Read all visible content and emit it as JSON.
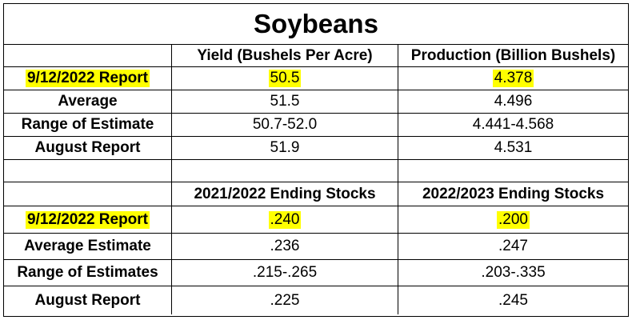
{
  "title": "Soybeans",
  "colors": {
    "highlight": "#ffff00",
    "border": "#000000"
  },
  "section1": {
    "headers": [
      "",
      "Yield (Bushels Per Acre)",
      "Production (Billion Bushels)"
    ],
    "rows": [
      {
        "label": "9/12/2022 Report",
        "v1": "50.5",
        "v2": "4.378",
        "highlight": true
      },
      {
        "label": "Average",
        "v1": "51.5",
        "v2": "4.496",
        "highlight": false
      },
      {
        "label": "Range of Estimate",
        "v1": "50.7-52.0",
        "v2": "4.441-4.568",
        "highlight": false
      },
      {
        "label": "August Report",
        "v1": "51.9",
        "v2": "4.531",
        "highlight": false
      }
    ]
  },
  "section2": {
    "headers": [
      "",
      "2021/2022 Ending Stocks",
      "2022/2023 Ending Stocks"
    ],
    "rows": [
      {
        "label": "9/12/2022 Report",
        "v1": ".240",
        "v2": ".200",
        "highlight": true
      },
      {
        "label": "Average Estimate",
        "v1": ".236",
        "v2": ".247",
        "highlight": false
      },
      {
        "label": "Range of Estimates",
        "v1": ".215-.265",
        "v2": ".203-.335",
        "highlight": false
      },
      {
        "label": "August Report",
        "v1": ".225",
        "v2": ".245",
        "highlight": false
      }
    ]
  }
}
